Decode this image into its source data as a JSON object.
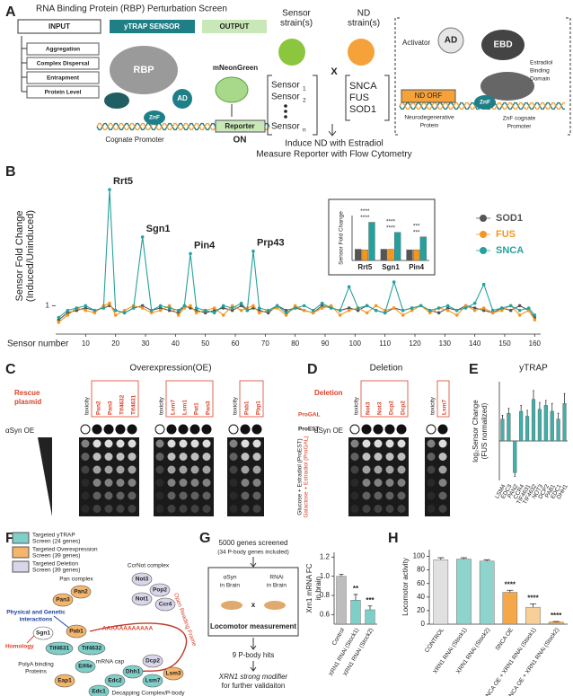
{
  "panel_labels": [
    "A",
    "B",
    "C",
    "D",
    "E",
    "F",
    "G",
    "H"
  ],
  "panel_a": {
    "title": "RNA Binding Protein (RBP) Perturbation Screen",
    "input": "INPUT",
    "sensor": "yTRAP SENSOR",
    "output": "OUTPUT",
    "input_items": [
      "Aggregation",
      "Complex Dispersal",
      "Entrapment",
      "Protein Level"
    ],
    "rbp": "RBP",
    "ad": "AD",
    "znf": "ZnF",
    "reporter": "Reporter",
    "on": "ON",
    "mneongreen": "mNeonGreen",
    "promoter": "Cognate Promoter",
    "sensor_strains": [
      "Sensor",
      "strain(s)"
    ],
    "sensor_list": [
      "Sensor",
      "Sensor",
      "Sensor"
    ],
    "sensor_subs": [
      "1",
      "2",
      "n"
    ],
    "cross": "X",
    "nd_strains": [
      "ND",
      "strain(s)"
    ],
    "nd_list": [
      "SNCA",
      "FUS",
      "SOD1"
    ],
    "activator": "Activator",
    "ad2": "AD",
    "ebd": "EBD",
    "ebd_label": [
      "Estradiol",
      "Binding",
      "Domain"
    ],
    "nd_orf": "ND ORF",
    "nd_protein": [
      "Neurodegenerative",
      "Protein"
    ],
    "znf2": "ZnF",
    "znf_promoter": [
      "ZnF cognate",
      "Promoter"
    ],
    "steps": [
      "Induce ND with Estradiol",
      "Measure Reporter with Flow Cytometry"
    ]
  },
  "panel_c": {
    "title": "Overexpression(OE)",
    "side_label": [
      "Rescue",
      "plasmid"
    ],
    "row_label": "αSyn OE",
    "blocks": [
      [
        "toxicity",
        "Pan2",
        "Pan3",
        "Tif4632",
        "Tif4631"
      ],
      [
        "toxicity",
        "Lsm7",
        "Lsm1",
        "Pat1",
        "Pan3"
      ],
      [
        "toxicity",
        "Pab1",
        "Pbp1"
      ]
    ],
    "right_labels": [
      "ProGAL",
      "ProEST"
    ],
    "conditions": [
      "Glucose + Estradiol (ProEST)",
      "Galactose + Estradiol (ProGAL)"
    ]
  },
  "panel_d": {
    "title": "Deletion",
    "side_label": [
      "Deletion"
    ],
    "row_label": "aSyn OE",
    "blocks": [
      [
        "toxicity",
        "Not3",
        "Not3",
        "Dcp2",
        "Dcp2"
      ],
      [
        "toxicity",
        "Lsm7"
      ]
    ]
  },
  "panel_f": {
    "legend": [
      [
        "Targeted yTRAP",
        "Screen (24 genes)"
      ],
      [
        "Targeted Overexpression",
        "Screen (39 genes)"
      ],
      [
        "Targeted Deletion",
        "Screen (39 genes)"
      ]
    ],
    "complexes": [
      "Pan complex",
      "CcrNot complex",
      "Decapping Complex/P-body"
    ],
    "interaction": [
      "Physical and Genetic",
      "interactions"
    ],
    "homology": "Homology",
    "polya": [
      "PolyA binding",
      "Proteins"
    ],
    "polya_tail": "AAAAAAAAAAAA",
    "cap": "mRNA cap",
    "orf": "Open Reading Frame",
    "nodes": [
      "Pan3",
      "Pan2",
      "Not3",
      "Pop2",
      "Not1",
      "Ccr4",
      "Sgn1",
      "Pab1",
      "Tif4631",
      "Tif4632",
      "Eif4e",
      "Eap1",
      "Dcp2",
      "Dhh1",
      "Edc2",
      "Lsm7",
      "Lsm3",
      "Edc1"
    ]
  },
  "panel_g": {
    "screen": [
      "5000 genes screened",
      "(34 P-body genes included)"
    ],
    "left": [
      "αSyn",
      "in Brain"
    ],
    "right": [
      "RNAi",
      "in Brain"
    ],
    "cross": "x",
    "measure": "Locomotor measurement",
    "hits": "9 P-body hits",
    "result": [
      "XRN1 strong modifier",
      "for further validaiton"
    ]
  },
  "chart_data": [
    {
      "type": "line",
      "x_label": "Sensor number",
      "y_label": [
        "Sensor Fold Change",
        "(Induced/Uninduced)"
      ],
      "x": [
        1,
        4,
        7,
        10,
        13,
        16,
        18,
        20,
        23,
        26,
        29,
        32,
        35,
        38,
        41,
        43,
        45,
        47,
        50,
        53,
        56,
        59,
        62,
        64,
        66,
        68,
        71,
        74,
        77,
        80,
        83,
        86,
        89,
        92,
        95,
        98,
        101,
        104,
        107,
        110,
        113,
        116,
        119,
        122,
        125,
        128,
        131,
        134,
        137,
        140,
        143,
        146,
        149,
        152,
        155,
        158,
        160
      ],
      "xlim": [
        0,
        162
      ],
      "xticks": [
        10,
        20,
        30,
        40,
        50,
        60,
        70,
        80,
        90,
        100,
        110,
        120,
        130,
        140,
        150,
        160
      ],
      "ylim": [
        0.4,
        3.7
      ],
      "yticks": [
        1
      ],
      "legend": "right",
      "series": [
        {
          "name": "SOD1",
          "color": "#555555",
          "values": [
            0.7,
            0.85,
            0.9,
            0.95,
            0.9,
            0.95,
            1.0,
            0.9,
            0.85,
            0.95,
            1.0,
            0.9,
            0.95,
            0.9,
            0.85,
            1.0,
            0.95,
            0.9,
            0.85,
            0.9,
            0.95,
            0.9,
            1.0,
            0.9,
            0.95,
            0.9,
            0.85,
            1.0,
            0.9,
            0.95,
            0.9,
            0.85,
            1.0,
            0.95,
            0.9,
            0.95,
            0.9,
            1.0,
            0.9,
            0.85,
            0.95,
            0.9,
            0.95,
            1.0,
            0.9,
            0.85,
            0.95,
            0.9,
            1.0,
            0.95,
            0.9,
            0.85,
            0.95,
            0.9,
            1.0,
            0.9,
            0.75
          ]
        },
        {
          "name": "FUS",
          "color": "#f5961e",
          "values": [
            0.65,
            0.8,
            0.95,
            0.9,
            0.85,
            1.0,
            1.05,
            0.8,
            0.9,
            1.0,
            0.95,
            0.85,
            0.9,
            1.0,
            0.8,
            0.95,
            1.0,
            0.85,
            0.9,
            0.95,
            0.8,
            1.0,
            0.9,
            0.95,
            1.0,
            0.85,
            0.9,
            0.95,
            0.8,
            1.0,
            0.9,
            0.85,
            0.95,
            1.0,
            0.8,
            0.9,
            0.95,
            0.85,
            1.0,
            0.9,
            0.95,
            0.8,
            0.9,
            1.0,
            0.85,
            0.95,
            0.9,
            0.8,
            1.0,
            0.9,
            0.95,
            0.85,
            0.9,
            1.0,
            0.8,
            0.9,
            0.7
          ]
        },
        {
          "name": "SNCA",
          "color": "#24a19c",
          "values": [
            0.75,
            0.9,
            0.95,
            1.0,
            0.9,
            0.95,
            3.45,
            0.9,
            0.85,
            0.95,
            2.45,
            0.9,
            1.0,
            0.95,
            0.9,
            1.0,
            2.1,
            0.95,
            0.9,
            0.85,
            1.0,
            0.95,
            1.05,
            0.9,
            2.15,
            0.95,
            0.9,
            1.0,
            0.85,
            0.95,
            1.0,
            0.9,
            1.05,
            0.95,
            0.9,
            1.4,
            0.95,
            1.0,
            0.9,
            0.85,
            1.5,
            0.9,
            0.95,
            1.0,
            0.9,
            0.95,
            1.0,
            0.9,
            0.95,
            1.05,
            1.45,
            0.9,
            0.95,
            1.0,
            0.9,
            0.95,
            0.8
          ],
          "point_labels": [
            null,
            null,
            null,
            null,
            null,
            null,
            "Rrt5",
            null,
            null,
            null,
            "Sgn1",
            null,
            null,
            null,
            null,
            null,
            "Pin4",
            null,
            null,
            null,
            null,
            null,
            null,
            null,
            "Prp43",
            null,
            null,
            null,
            null,
            null,
            null,
            null,
            null,
            null,
            null,
            null,
            null,
            null,
            null,
            null,
            null,
            null,
            null,
            null,
            null,
            null,
            null,
            null,
            null,
            null,
            null,
            null,
            null,
            null,
            null,
            null,
            null
          ]
        }
      ]
    },
    {
      "type": "bar",
      "y_label": "Sensor Fold Change",
      "categories": [
        "Rrt5",
        "Sgn1",
        "Pin4"
      ],
      "ylim": [
        0,
        4
      ],
      "series": [
        {
          "color": "#555555",
          "values": [
            1.0,
            1.0,
            0.95
          ]
        },
        {
          "color": "#f5961e",
          "values": [
            0.95,
            1.0,
            0.95
          ]
        },
        {
          "color": "#24a19c",
          "values": [
            3.4,
            2.5,
            2.1
          ]
        }
      ],
      "significance": [
        "****",
        "****",
        "****",
        "****",
        "***",
        "***"
      ]
    },
    {
      "type": "bar",
      "title": "yTRAP",
      "y_label": [
        "log₂Sensor Change",
        "(FUS normalized)"
      ],
      "categories": [
        "LSM4",
        "EDC3",
        "PAN2",
        "CCR4",
        "TIF4631",
        "TIF4632",
        "NOT3",
        "DCP2",
        "PAB1",
        "EDC1",
        "DHH1"
      ],
      "values": [
        0.22,
        0.28,
        -0.32,
        0.3,
        0.25,
        0.42,
        0.32,
        0.36,
        0.3,
        0.22,
        0.38
      ],
      "errors": [
        0.04,
        0.05,
        0.04,
        0.06,
        0.06,
        0.09,
        0.07,
        0.05,
        0.08,
        0.06,
        0.1
      ],
      "color": "#3fb0aa",
      "ylim": [
        -0.4,
        0.6
      ]
    },
    {
      "type": "bar",
      "y_label": [
        "Xrn1 mRNA FC",
        "in brain"
      ],
      "categories": [
        "Control",
        "XRN1 RNAi (Stock1)",
        "XRN1 RNAi (Stock2)"
      ],
      "values": [
        1.0,
        0.75,
        0.65
      ],
      "errors": [
        0.02,
        0.06,
        0.04
      ],
      "colors": [
        "#bdbdbd",
        "#7fcfc9",
        "#7fcfc9"
      ],
      "significance": [
        null,
        "**",
        "***"
      ],
      "ylim": [
        0.5,
        1.25
      ],
      "yticks": [
        0.6,
        0.8,
        {
          "value": 1,
          "label": "1.0"
        },
        1.2
      ]
    },
    {
      "type": "bar",
      "y_label": "Locomotor activity",
      "categories": [
        "CONTROL",
        "XRN1 RNAi (Stock1)",
        "XRN1 RNAi (Stock2)",
        "SNCA OE",
        "SNCA OE + XRN1 RNAi (Stock1)",
        "SNCA OE + XRN1 RNAi (Stock2)"
      ],
      "values": [
        95,
        96,
        93,
        47,
        25,
        3
      ],
      "errors": [
        3,
        2,
        2,
        3,
        5,
        1
      ],
      "colors": [
        "#e0e0e0",
        "#8fd3cd",
        "#8fd3cd",
        "#f5a84a",
        "#f9cf98",
        "#f5a84a"
      ],
      "significance": [
        null,
        null,
        null,
        "****",
        "****",
        "****"
      ],
      "ylim": [
        0,
        110
      ],
      "yticks": [
        0,
        20,
        40,
        60,
        80,
        100
      ]
    }
  ]
}
